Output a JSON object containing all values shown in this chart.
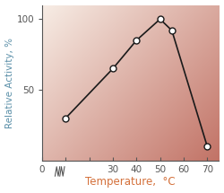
{
  "x": [
    10,
    30,
    40,
    50,
    55,
    70
  ],
  "y": [
    30,
    65,
    85,
    100,
    92,
    10
  ],
  "xlim": [
    0,
    75
  ],
  "ylim": [
    0,
    110
  ],
  "xticks": [
    0,
    10,
    20,
    30,
    40,
    50,
    60,
    70
  ],
  "xtick_labels": [
    "0",
    "",
    "",
    "30",
    "40",
    "50",
    "60",
    "70"
  ],
  "xlabel": "Temperature,  °C",
  "ylabel": "Relative Activity, %",
  "yticks": [
    50,
    100
  ],
  "ytick_labels": [
    "50",
    "100"
  ],
  "line_color": "#1a1a1a",
  "marker_facecolor": "white",
  "marker_edgecolor": "#1a1a1a",
  "xlabel_color": "#d4703a",
  "ylabel_color": "#5a8fa8",
  "tick_label_color_x": "#d4703a",
  "tick_label_color_y": "#5a8fa8",
  "bg_light": [
    0.97,
    0.93,
    0.9
  ],
  "bg_dark": [
    0.76,
    0.45,
    0.4
  ]
}
